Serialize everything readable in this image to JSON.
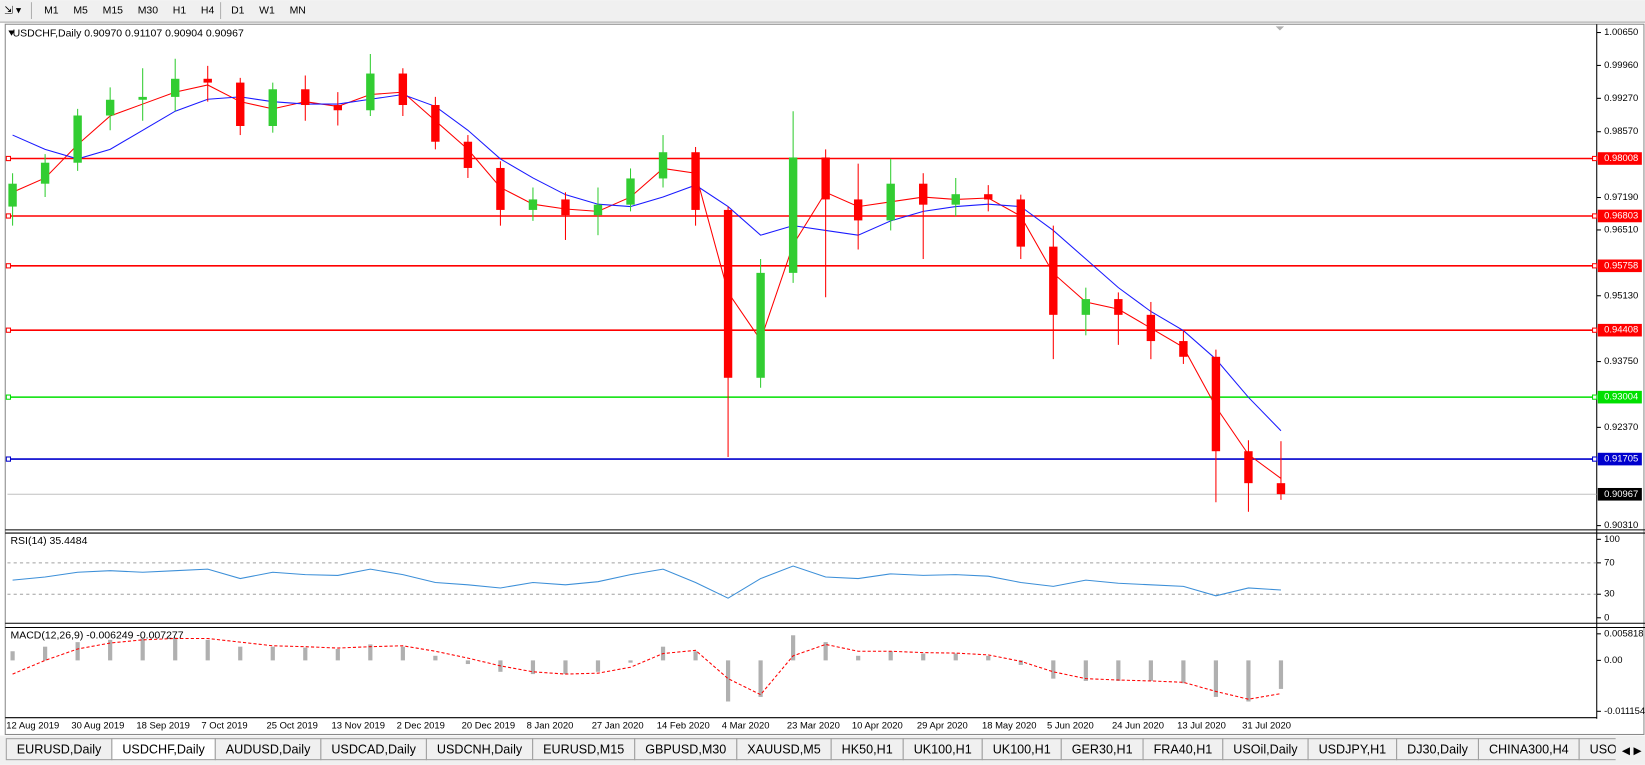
{
  "toolbar": {
    "timeframes": [
      "M1",
      "M5",
      "M15",
      "M30",
      "H1",
      "H4",
      "D1",
      "W1",
      "MN"
    ]
  },
  "chart_data": [
    {
      "type": "candlestick",
      "title": "USDCHF,Daily  0.90970 0.91107 0.90904 0.90967",
      "categories": [
        "12 Aug 2019",
        null,
        "30 Aug 2019",
        null,
        "18 Sep 2019",
        null,
        "7 Oct 2019",
        null,
        "25 Oct 2019",
        null,
        "13 Nov 2019",
        null,
        "2 Dec 2019",
        null,
        "20 Dec 2019",
        null,
        "8 Jan 2020",
        null,
        "27 Jan 2020",
        null,
        "14 Feb 2020",
        null,
        "4 Mar 2020",
        null,
        "23 Mar 2020",
        null,
        "10 Apr 2020",
        null,
        "29 Apr 2020",
        null,
        "18 May 2020",
        null,
        "5 Jun 2020",
        null,
        "24 Jun 2020",
        null,
        "13 Jul 2020",
        null,
        "31 Jul 2020",
        null
      ],
      "open": [
        0.97,
        0.9748,
        0.9792,
        0.9891,
        0.9924,
        0.993,
        0.9968,
        0.996,
        0.9869,
        0.9946,
        0.9913,
        0.9902,
        0.9979,
        0.9913,
        0.9836,
        0.9781,
        0.9693,
        0.9715,
        0.9682,
        0.9704,
        0.9759,
        0.9814,
        0.9693,
        0.9341,
        0.9561,
        0.9803,
        0.9715,
        0.9671,
        0.9748,
        0.9704,
        0.9726,
        0.9715,
        0.9616,
        0.9473,
        0.9506,
        0.9473,
        0.9418,
        0.9385,
        0.9187,
        0.912
      ],
      "high": [
        0.977,
        0.981,
        0.9905,
        0.995,
        0.999,
        1.001,
        0.9995,
        0.997,
        0.996,
        0.9975,
        0.994,
        1.002,
        0.999,
        0.993,
        0.985,
        0.9795,
        0.974,
        0.973,
        0.974,
        0.978,
        0.985,
        0.9825,
        0.97,
        0.959,
        0.99,
        0.982,
        0.979,
        0.98,
        0.977,
        0.976,
        0.9745,
        0.9725,
        0.966,
        0.953,
        0.952,
        0.95,
        0.944,
        0.94,
        0.921,
        0.9208
      ],
      "low": [
        0.966,
        0.972,
        0.9775,
        0.986,
        0.988,
        0.99,
        0.992,
        0.985,
        0.9855,
        0.988,
        0.987,
        0.989,
        0.989,
        0.982,
        0.976,
        0.966,
        0.967,
        0.963,
        0.964,
        0.969,
        0.974,
        0.966,
        0.9175,
        0.932,
        0.954,
        0.951,
        0.961,
        0.965,
        0.959,
        0.968,
        0.969,
        0.959,
        0.938,
        0.943,
        0.941,
        0.938,
        0.937,
        0.908,
        0.906,
        0.9085
      ],
      "close": [
        0.9748,
        0.9792,
        0.9891,
        0.9924,
        0.993,
        0.9968,
        0.996,
        0.9869,
        0.9946,
        0.9913,
        0.9902,
        0.9979,
        0.9913,
        0.9836,
        0.9781,
        0.9693,
        0.9715,
        0.9682,
        0.9704,
        0.9759,
        0.9814,
        0.9693,
        0.9341,
        0.9561,
        0.9803,
        0.9715,
        0.9671,
        0.9748,
        0.9704,
        0.9726,
        0.9715,
        0.9616,
        0.9473,
        0.9506,
        0.9473,
        0.9418,
        0.9385,
        0.9187,
        0.912,
        0.9097
      ],
      "up_color": "#32cd32",
      "down_color": "#ff0000",
      "overlays": [
        {
          "color": "#ff0000",
          "values": [
            0.973,
            0.976,
            0.983,
            0.989,
            0.9915,
            0.994,
            0.9955,
            0.992,
            0.9905,
            0.992,
            0.991,
            0.9935,
            0.994,
            0.988,
            0.982,
            0.974,
            0.9705,
            0.9695,
            0.969,
            0.972,
            0.978,
            0.977,
            0.952,
            0.942,
            0.962,
            0.973,
            0.97,
            0.971,
            0.972,
            0.9715,
            0.9718,
            0.968,
            0.956,
            0.95,
            0.9485,
            0.9445,
            0.9405,
            0.928,
            0.918,
            0.913
          ]
        },
        {
          "color": "#1a1aff",
          "values": [
            0.985,
            0.982,
            0.98,
            0.982,
            0.986,
            0.99,
            0.9925,
            0.993,
            0.992,
            0.9915,
            0.9915,
            0.9925,
            0.9935,
            0.991,
            0.986,
            0.98,
            0.976,
            0.9725,
            0.9705,
            0.97,
            0.972,
            0.9745,
            0.97,
            0.964,
            0.966,
            0.965,
            0.964,
            0.967,
            0.969,
            0.97,
            0.9705,
            0.97,
            0.965,
            0.959,
            0.953,
            0.948,
            0.944,
            0.938,
            0.93,
            0.923
          ]
        }
      ],
      "levels": [
        {
          "value": 0.98008,
          "color": "#ff0000"
        },
        {
          "value": 0.96803,
          "color": "#ff0000"
        },
        {
          "value": 0.95758,
          "color": "#ff0000"
        },
        {
          "value": 0.94408,
          "color": "#ff0000"
        },
        {
          "value": 0.93004,
          "color": "#00e000"
        },
        {
          "value": 0.91705,
          "color": "#0000cd"
        }
      ],
      "current_price": {
        "value": 0.90967,
        "color": "#000000"
      },
      "ylim": [
        0.9022,
        1.0078
      ],
      "yticks": [
        {
          "value": 1.0065,
          "label": "1.00650"
        },
        {
          "value": 0.9996,
          "label": "0.99960"
        },
        {
          "value": 0.9927,
          "label": "0.99270"
        },
        {
          "value": 0.9857,
          "label": "0.98570"
        },
        {
          "value": 0.9719,
          "label": "0.97190"
        },
        {
          "value": 0.9651,
          "label": "0.96510"
        },
        {
          "value": 0.9513,
          "label": "0.95130"
        },
        {
          "value": 0.9375,
          "label": "0.93750"
        },
        {
          "value": 0.9237,
          "label": "0.92370"
        },
        {
          "value": 0.9031,
          "label": "0.90310"
        }
      ]
    },
    {
      "type": "line",
      "title": "RSI(14) 35.4484",
      "color": "#3c8fd8",
      "values": [
        48,
        52,
        58,
        60,
        58,
        60,
        62,
        50,
        58,
        55,
        54,
        62,
        55,
        45,
        42,
        38,
        45,
        42,
        46,
        55,
        62,
        45,
        25,
        50,
        66,
        52,
        50,
        56,
        54,
        55,
        53,
        45,
        40,
        48,
        44,
        42,
        40,
        28,
        38,
        35.4484
      ],
      "dashed_levels": [
        70,
        30
      ],
      "ylim": [
        -7,
        108
      ],
      "yticks": [
        100,
        70,
        30,
        0
      ]
    },
    {
      "type": "macd",
      "title": "MACD(12,26,9) -0.006249 -0.007277",
      "histogram_color": "#b0b0b0",
      "signal_color": "#ff0000",
      "histogram": [
        0.002,
        0.003,
        0.004,
        0.0045,
        0.0048,
        0.005,
        0.0045,
        0.003,
        0.003,
        0.0028,
        0.0025,
        0.0035,
        0.003,
        0.001,
        -0.0008,
        -0.0025,
        -0.003,
        -0.003,
        -0.0025,
        -0.0005,
        0.003,
        0.002,
        -0.009,
        -0.008,
        0.0055,
        0.004,
        0.001,
        0.002,
        0.0015,
        0.0015,
        0.001,
        -0.001,
        -0.004,
        -0.0045,
        -0.0045,
        -0.0045,
        -0.005,
        -0.008,
        -0.009,
        -0.006249
      ],
      "signal": [
        -0.003,
        0.0,
        0.0025,
        0.0038,
        0.0045,
        0.0048,
        0.0048,
        0.004,
        0.0032,
        0.003,
        0.0027,
        0.003,
        0.0032,
        0.002,
        0.0005,
        -0.0012,
        -0.0025,
        -0.003,
        -0.0028,
        -0.0015,
        0.0015,
        0.0022,
        -0.004,
        -0.0075,
        0.001,
        0.0035,
        0.002,
        0.002,
        0.0017,
        0.0016,
        0.0012,
        -0.0002,
        -0.0025,
        -0.004,
        -0.0043,
        -0.0045,
        -0.0048,
        -0.0068,
        -0.0085,
        -0.007277
      ],
      "ylim": [
        -0.01255,
        0.00721
      ],
      "yticks": [
        0.005818,
        {
          "value": 0,
          "label": "0.00"
        },
        -0.011154
      ]
    }
  ],
  "tabs": [
    "EURUSD,Daily",
    "USDCHF,Daily",
    "AUDUSD,Daily",
    "USDCAD,Daily",
    "USDCNH,Daily",
    "EURUSD,M15",
    "GBPUSD,M30",
    "XAUUSD,M5",
    "HK50,H1",
    "UK100,H1",
    "UK100,H1",
    "GER30,H1",
    "FRA40,H1",
    "USOil,Daily",
    "USDJPY,H1",
    "DJ30,Daily",
    "CHINA300,H4",
    "USOil,Daily"
  ]
}
